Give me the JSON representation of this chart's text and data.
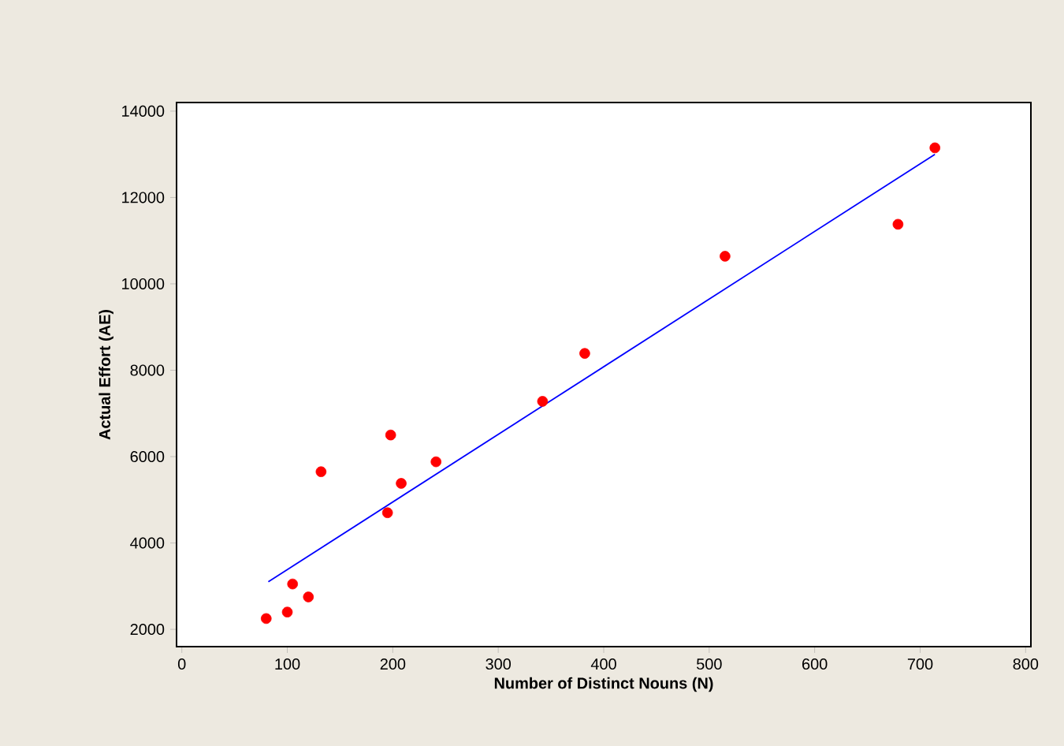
{
  "chart_data": {
    "type": "scatter",
    "xlabel": "Number of Distinct Nouns (N)",
    "ylabel": "Actual Effort (AE)",
    "xlim": [
      -5,
      805
    ],
    "ylim": [
      1600,
      14200
    ],
    "xticks": [
      0,
      100,
      200,
      300,
      400,
      500,
      600,
      700,
      800
    ],
    "yticks": [
      2000,
      4000,
      6000,
      8000,
      10000,
      12000,
      14000
    ],
    "grid": false,
    "series": [
      {
        "marker": "circle",
        "color": "#ff0000",
        "x": [
          80,
          100,
          105,
          120,
          132,
          195,
          198,
          208,
          241,
          342,
          382,
          515,
          679,
          714
        ],
        "values": [
          2250,
          2400,
          3050,
          2750,
          5650,
          4700,
          6500,
          5380,
          5880,
          7280,
          8390,
          10640,
          11380,
          13150
        ]
      },
      {
        "type": "line",
        "color": "#0000ff",
        "x": [
          82,
          714
        ],
        "values": [
          3100,
          13000
        ]
      }
    ]
  }
}
